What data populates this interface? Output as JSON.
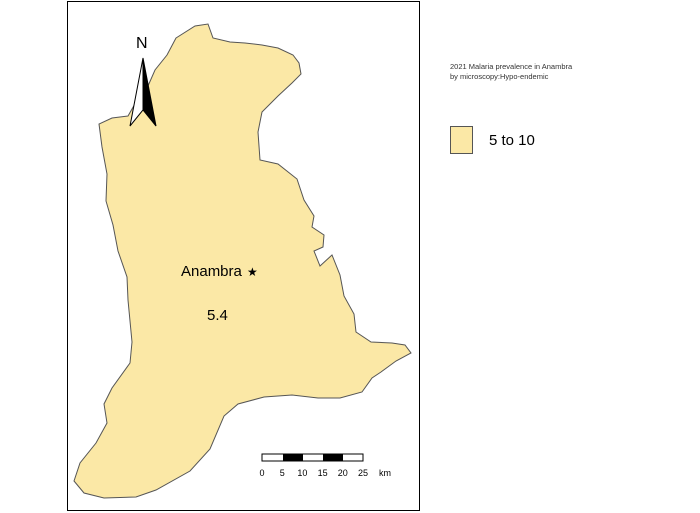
{
  "map": {
    "north_label": "N",
    "region_name": "Anambra",
    "capital_marker": "★",
    "region_value": "5.4",
    "fill_color": "#fbe8a6",
    "outline_color": "#555555",
    "scale_bar": {
      "ticks": [
        "0",
        "5",
        "10",
        "15",
        "20",
        "25"
      ],
      "unit": "km"
    }
  },
  "title": {
    "line1": "2021 Malaria prevalence in Anambra",
    "line2": "by microscopy:Hypo-endemic"
  },
  "legend": {
    "label": "5 to 10",
    "color": "#fbe8a6"
  }
}
